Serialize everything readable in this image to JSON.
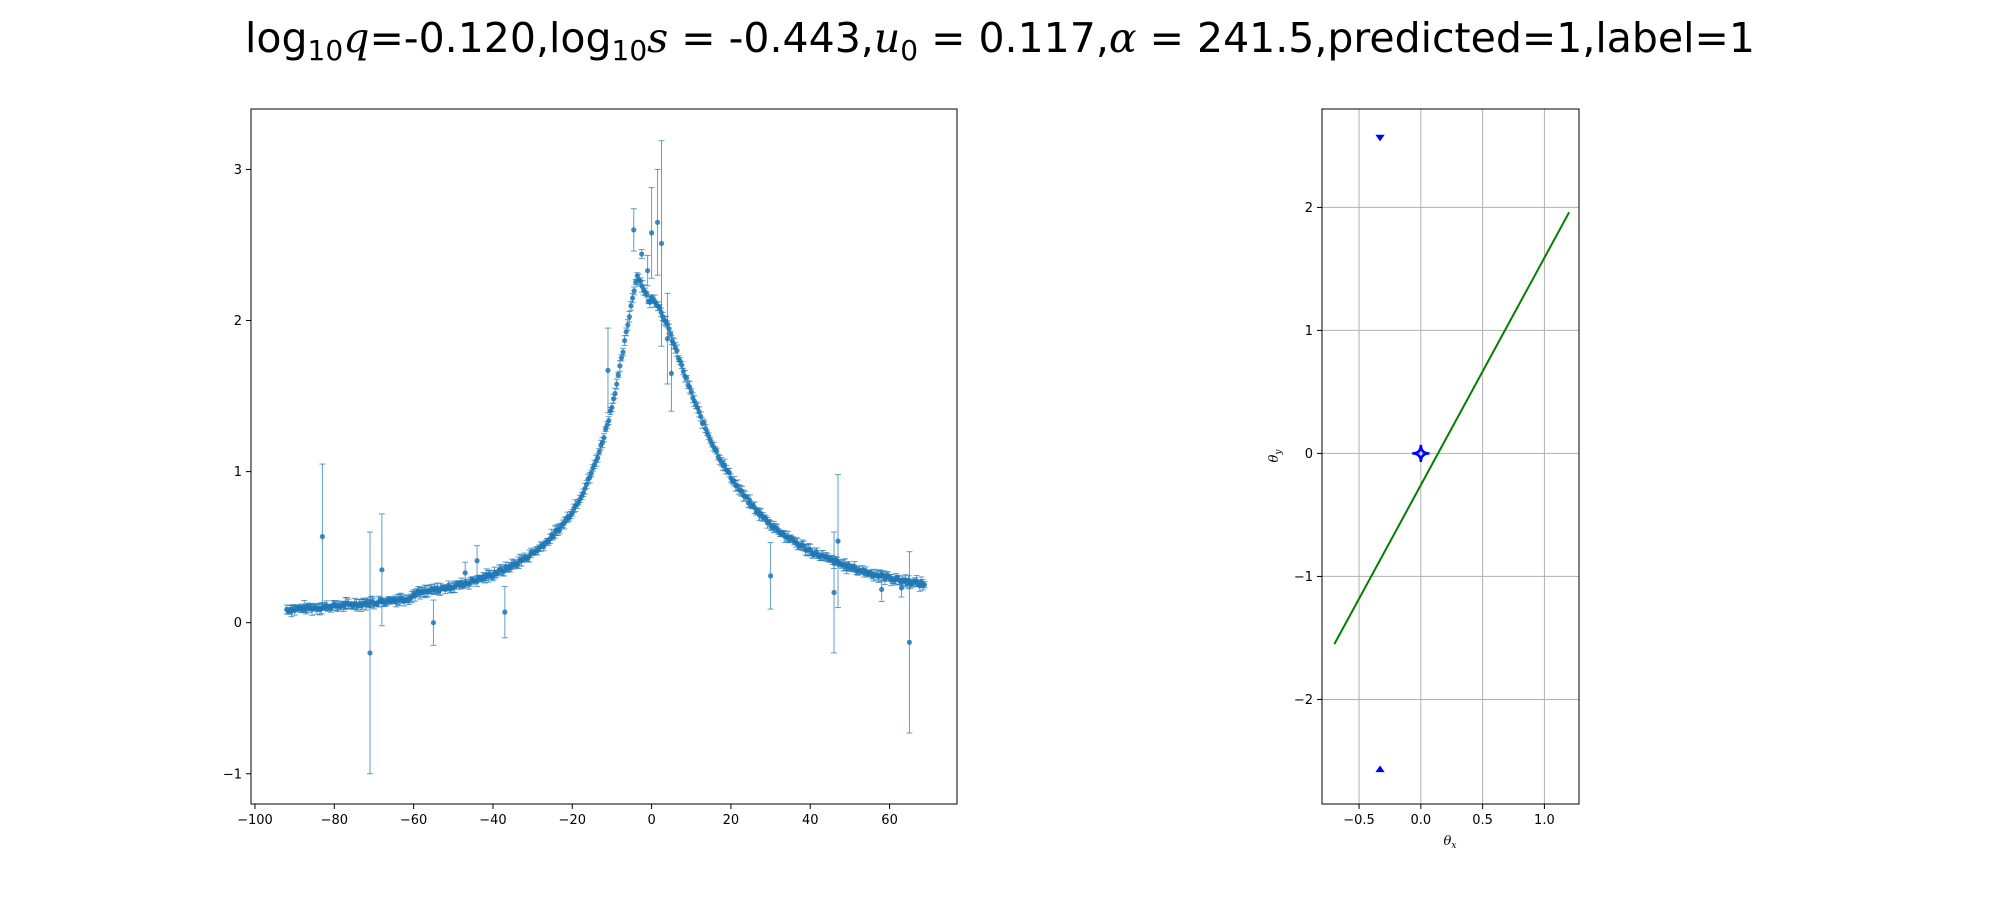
{
  "title": {
    "parts": [
      {
        "t": "log",
        "style": "normal"
      },
      {
        "t": "10",
        "style": "sub"
      },
      {
        "t": "q",
        "style": "italic"
      },
      {
        "t": "=-0.120,log",
        "style": "normal"
      },
      {
        "t": "10",
        "style": "sub"
      },
      {
        "t": "s",
        "style": "italic"
      },
      {
        "t": " = -0.443,",
        "style": "normal"
      },
      {
        "t": "u",
        "style": "italic"
      },
      {
        "t": "0",
        "style": "sub"
      },
      {
        "t": " = 0.117,",
        "style": "normal"
      },
      {
        "t": "α",
        "style": "italic"
      },
      {
        "t": " = 241.5,predicted=1,label=1",
        "style": "normal"
      }
    ]
  },
  "chart_data": [
    {
      "type": "scatter",
      "name": "light-curve",
      "title": "",
      "xlabel": "",
      "ylabel": "",
      "xlim": [
        -101,
        77
      ],
      "ylim": [
        -1.2,
        3.4
      ],
      "xticks": [
        -100,
        -80,
        -60,
        -40,
        -20,
        0,
        20,
        40,
        60
      ],
      "yticks": [
        -1,
        0,
        1,
        2,
        3
      ],
      "grid": false,
      "marker_color": "#1f77b4",
      "x_range": [
        -92,
        69
      ],
      "magnification_model": {
        "peak_x": -3.5,
        "peak_y": 2.3,
        "caustic_exit_x": 0,
        "shoulder_y": 2.1,
        "baseline": 0
      },
      "outliers": [
        {
          "x": -83,
          "y": 0.57,
          "err": 0.48
        },
        {
          "x": -71,
          "y": -0.2,
          "err": 0.8
        },
        {
          "x": -68,
          "y": 0.35,
          "err": 0.37
        },
        {
          "x": -55,
          "y": 0.0,
          "err": 0.15
        },
        {
          "x": -47,
          "y": 0.33,
          "err": 0.07
        },
        {
          "x": -44,
          "y": 0.41,
          "err": 0.1
        },
        {
          "x": -37,
          "y": 0.07,
          "err": 0.17
        },
        {
          "x": -11,
          "y": 1.67,
          "err": 0.28
        },
        {
          "x": -4.5,
          "y": 2.6,
          "err": 0.14
        },
        {
          "x": -2.5,
          "y": 2.44,
          "err": 0.03
        },
        {
          "x": -1,
          "y": 2.33,
          "err": 0.1
        },
        {
          "x": 0,
          "y": 2.58,
          "err": 0.3
        },
        {
          "x": 1.5,
          "y": 2.65,
          "err": 0.35
        },
        {
          "x": 2.5,
          "y": 2.51,
          "err": 0.68
        },
        {
          "x": 4,
          "y": 1.88,
          "err": 0.3
        },
        {
          "x": 5,
          "y": 1.65,
          "err": 0.25
        },
        {
          "x": 30,
          "y": 0.31,
          "err": 0.22
        },
        {
          "x": 46,
          "y": 0.2,
          "err": 0.4
        },
        {
          "x": 47,
          "y": 0.54,
          "err": 0.44
        },
        {
          "x": 58,
          "y": 0.22,
          "err": 0.08
        },
        {
          "x": 63,
          "y": 0.23,
          "err": 0.06
        },
        {
          "x": 65,
          "y": -0.13,
          "err": 0.6
        }
      ]
    },
    {
      "type": "line",
      "name": "caustic-geometry",
      "title": "",
      "xlabel": "θ_x",
      "ylabel": "θ_y",
      "xlim": [
        -0.8,
        1.28
      ],
      "ylim": [
        -2.85,
        2.8
      ],
      "xticks": [
        -0.5,
        0.0,
        0.5,
        1.0
      ],
      "xtick_labels": [
        "−0.5",
        "0.0",
        "0.5",
        "1.0"
      ],
      "yticks": [
        -2,
        -1,
        0,
        1,
        2
      ],
      "ytick_labels": [
        "−2",
        "−1",
        "0",
        "1",
        "2"
      ],
      "grid": true,
      "trajectory": {
        "color": "#008000",
        "x": [
          -0.7,
          1.2
        ],
        "y": [
          -1.55,
          1.96
        ]
      },
      "central_caustic": {
        "color": "#0000ff",
        "center": [
          0.0,
          0.0
        ],
        "half_width_x": 0.07,
        "half_height_y": 0.07
      },
      "planetary_caustics": [
        {
          "color": "#0000ff",
          "x": -0.33,
          "y": 2.57
        },
        {
          "color": "#0000ff",
          "x": -0.33,
          "y": -2.57
        }
      ]
    }
  ]
}
